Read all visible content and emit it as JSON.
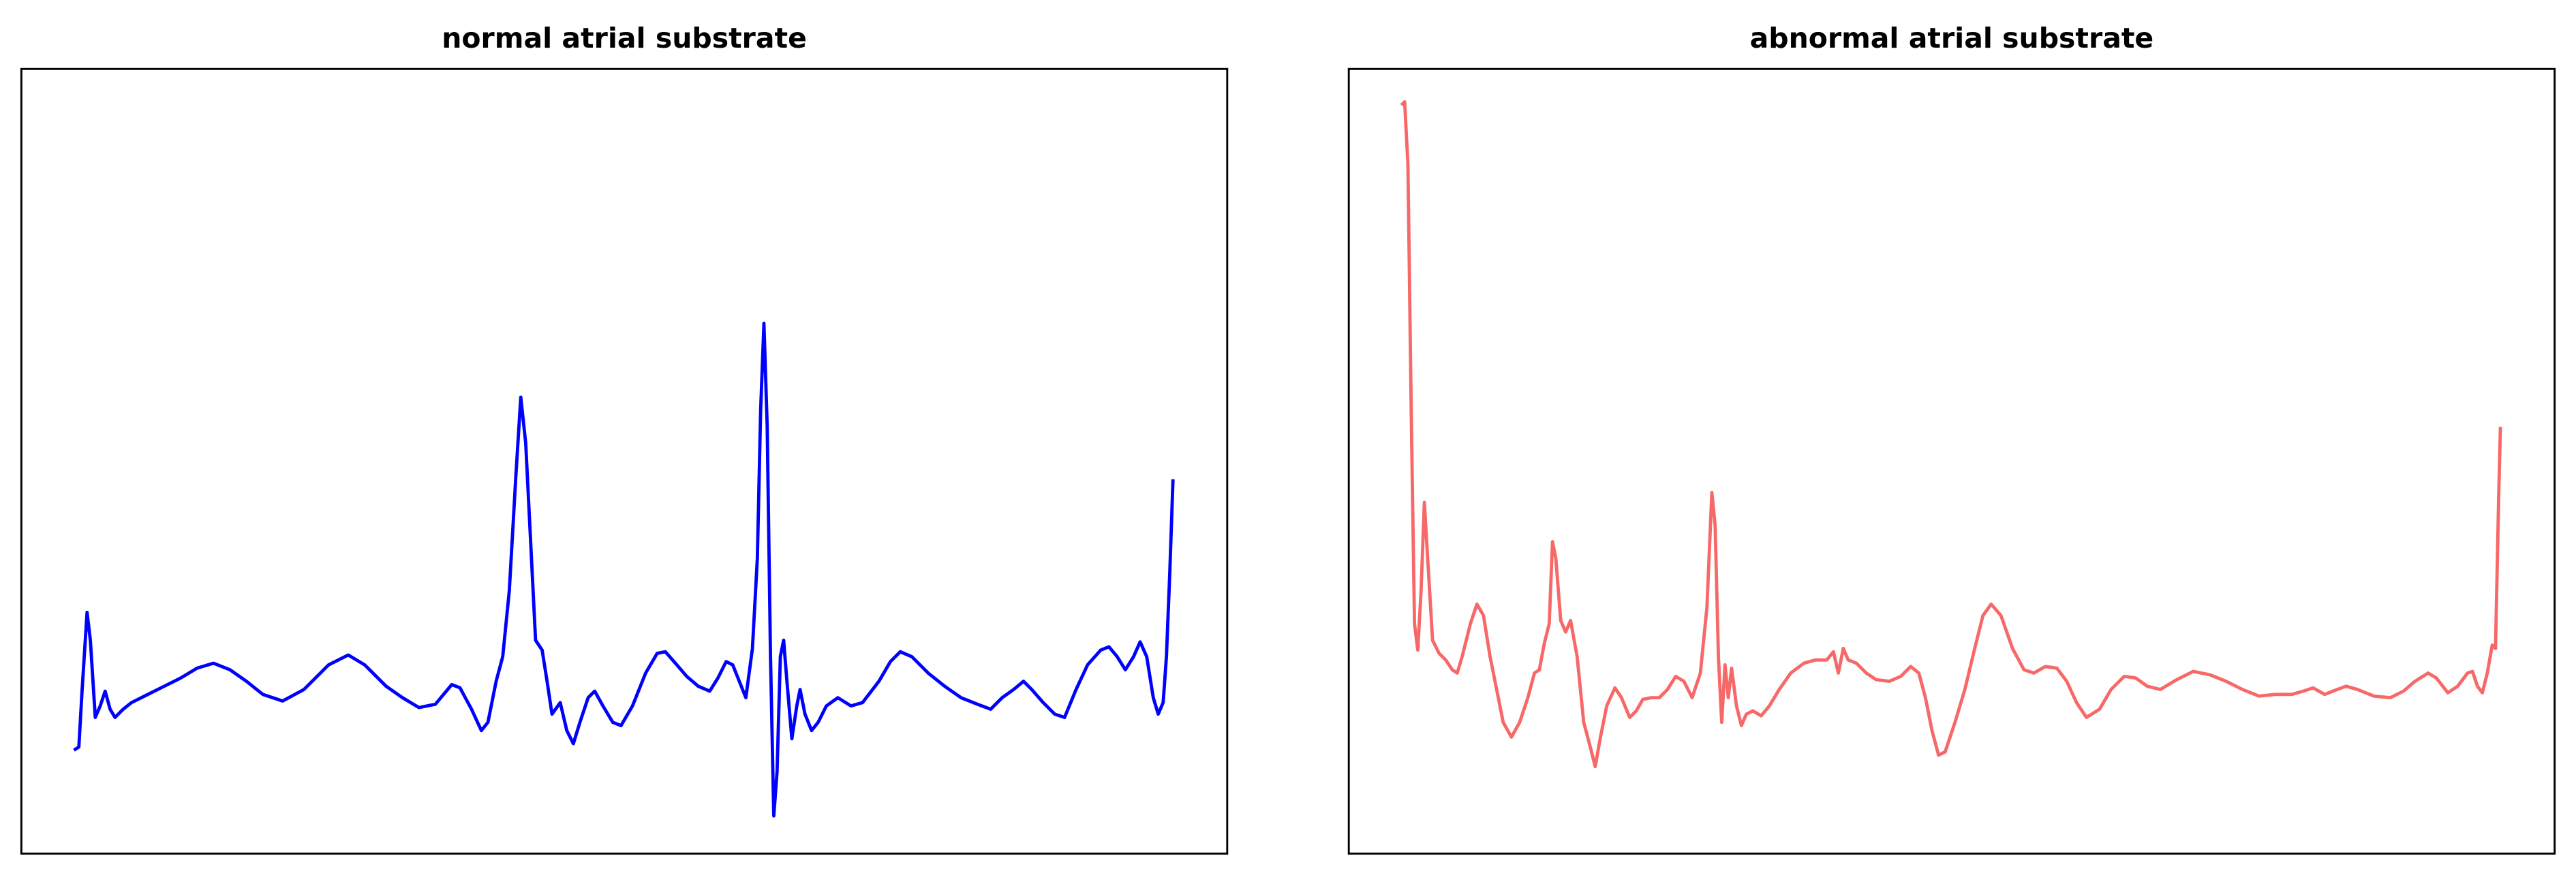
{
  "chart_data": [
    {
      "type": "line",
      "title": "normal atrial substrate",
      "color": "#0000ff",
      "xlim": [
        0,
        734
      ],
      "ylim": [
        0,
        478
      ],
      "x": [
        32,
        35,
        37,
        40,
        42,
        45,
        48,
        51,
        54,
        57,
        62,
        67,
        77,
        87,
        97,
        107,
        117,
        127,
        137,
        147,
        159,
        172,
        187,
        199,
        209,
        222,
        232,
        242,
        252,
        262,
        267,
        274,
        280,
        284,
        289,
        293,
        297,
        301,
        304,
        307,
        310,
        313,
        317,
        320,
        323,
        328,
        332,
        336,
        340,
        345,
        349,
        354,
        360,
        365,
        372,
        380,
        387,
        392,
        399,
        405,
        412,
        419,
        424,
        429,
        433,
        437,
        441,
        445,
        448,
        450,
        452,
        454,
        456,
        458,
        460,
        462,
        464,
        466,
        469,
        472,
        474,
        477,
        481,
        485,
        490,
        497,
        505,
        512,
        522,
        529,
        535,
        542,
        552,
        562,
        572,
        582,
        590,
        597,
        604,
        610,
        615,
        622,
        629,
        635,
        642,
        649,
        657,
        662,
        667,
        672,
        677,
        681,
        685,
        689,
        692,
        695,
        697,
        699,
        701
      ],
      "values": [
        63,
        65,
        100,
        147,
        130,
        83,
        90,
        99,
        88,
        83,
        88,
        92,
        97,
        102,
        107,
        113,
        116,
        112,
        105,
        97,
        93,
        100,
        115,
        121,
        115,
        102,
        95,
        89,
        91,
        103,
        101,
        88,
        75,
        80,
        105,
        120,
        160,
        230,
        278,
        250,
        190,
        130,
        124,
        105,
        85,
        92,
        75,
        67,
        80,
        95,
        99,
        90,
        80,
        78,
        90,
        110,
        122,
        123,
        115,
        108,
        102,
        99,
        107,
        117,
        115,
        105,
        95,
        125,
        180,
        270,
        323,
        260,
        120,
        23,
        50,
        120,
        130,
        105,
        70,
        90,
        100,
        85,
        75,
        80,
        90,
        95,
        90,
        92,
        105,
        117,
        123,
        120,
        110,
        102,
        95,
        91,
        88,
        95,
        100,
        105,
        100,
        92,
        85,
        83,
        100,
        115,
        124,
        126,
        120,
        112,
        120,
        129,
        120,
        95,
        85,
        92,
        120,
        170,
        228
      ]
    },
    {
      "type": "line",
      "title": "abnormal atrial substrate",
      "color": "#f76868",
      "xlim": [
        0,
        734
      ],
      "ylim": [
        0,
        478
      ],
      "x": [
        32,
        34,
        36,
        38,
        40,
        42,
        44,
        46,
        48,
        51,
        55,
        59,
        63,
        66,
        69,
        74,
        78,
        82,
        86,
        90,
        94,
        99,
        104,
        109,
        113,
        116,
        119,
        122,
        124,
        126,
        129,
        132,
        135,
        139,
        143,
        147,
        150,
        153,
        157,
        162,
        166,
        171,
        175,
        179,
        184,
        189,
        194,
        199,
        204,
        209,
        214,
        218,
        221,
        223,
        225,
        227,
        229,
        231,
        233,
        236,
        239,
        242,
        246,
        251,
        256,
        262,
        269,
        277,
        284,
        291,
        295,
        298,
        301,
        304,
        309,
        315,
        321,
        329,
        336,
        342,
        347,
        351,
        355,
        359,
        363,
        369,
        375,
        381,
        386,
        391,
        397,
        404,
        411,
        417,
        424,
        431,
        437,
        443,
        449,
        457,
        464,
        472,
        479,
        486,
        494,
        504,
        514,
        524,
        534,
        544,
        554,
        564,
        574,
        581,
        587,
        594,
        599,
        607,
        614,
        624,
        634,
        642,
        649,
        657,
        662,
        669,
        675,
        681,
        684,
        687,
        690,
        693,
        696,
        698,
        700,
        701
      ],
      "values": [
        456,
        458,
        420,
        270,
        140,
        124,
        160,
        214,
        180,
        130,
        122,
        118,
        112,
        110,
        120,
        140,
        152,
        145,
        120,
        100,
        80,
        71,
        80,
        95,
        110,
        112,
        128,
        140,
        190,
        180,
        142,
        135,
        142,
        120,
        80,
        65,
        53,
        70,
        90,
        101,
        95,
        83,
        87,
        94,
        95,
        95,
        100,
        108,
        105,
        95,
        110,
        150,
        220,
        200,
        120,
        80,
        115,
        95,
        113,
        90,
        78,
        85,
        87,
        84,
        90,
        100,
        110,
        116,
        118,
        118,
        123,
        110,
        125,
        118,
        116,
        110,
        106,
        105,
        108,
        114,
        110,
        95,
        75,
        60,
        62,
        80,
        100,
        125,
        145,
        152,
        145,
        125,
        112,
        110,
        114,
        113,
        105,
        92,
        83,
        88,
        100,
        108,
        107,
        102,
        100,
        106,
        111,
        109,
        105,
        100,
        96,
        97,
        97,
        99,
        101,
        97,
        99,
        102,
        100,
        96,
        95,
        99,
        105,
        110,
        107,
        98,
        102,
        110,
        111,
        102,
        98,
        110,
        127,
        125,
        220,
        260
      ]
    }
  ]
}
